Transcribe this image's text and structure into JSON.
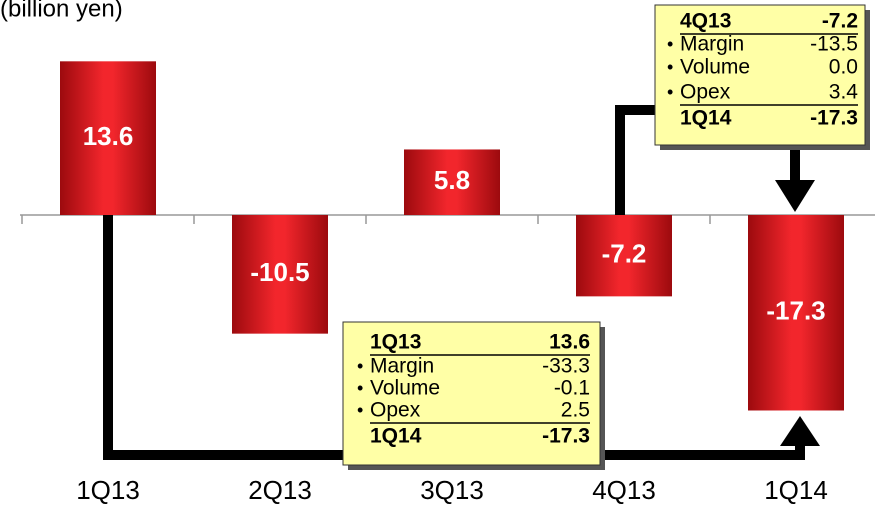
{
  "chart_data": {
    "type": "bar",
    "unit_label": "(billion yen)",
    "categories": [
      "1Q13",
      "2Q13",
      "3Q13",
      "4Q13",
      "1Q14"
    ],
    "values": [
      13.6,
      -10.5,
      5.8,
      -7.2,
      -17.3
    ],
    "color": "#e8141b",
    "annotations": [
      {
        "header": {
          "label": "1Q13",
          "value": "13.6"
        },
        "items": [
          {
            "name": "Margin",
            "value": "-33.3"
          },
          {
            "name": "Volume",
            "value": "-0.1"
          },
          {
            "name": "Opex",
            "value": "2.5"
          }
        ],
        "footer": {
          "label": "1Q14",
          "value": "-17.3"
        }
      },
      {
        "header": {
          "label": "4Q13",
          "value": "-7.2"
        },
        "items": [
          {
            "name": "Margin",
            "value": "-13.5"
          },
          {
            "name": "Volume",
            "value": "0.0"
          },
          {
            "name": "Opex",
            "value": "3.4"
          }
        ],
        "footer": {
          "label": "1Q14",
          "value": "-17.3"
        }
      }
    ]
  }
}
